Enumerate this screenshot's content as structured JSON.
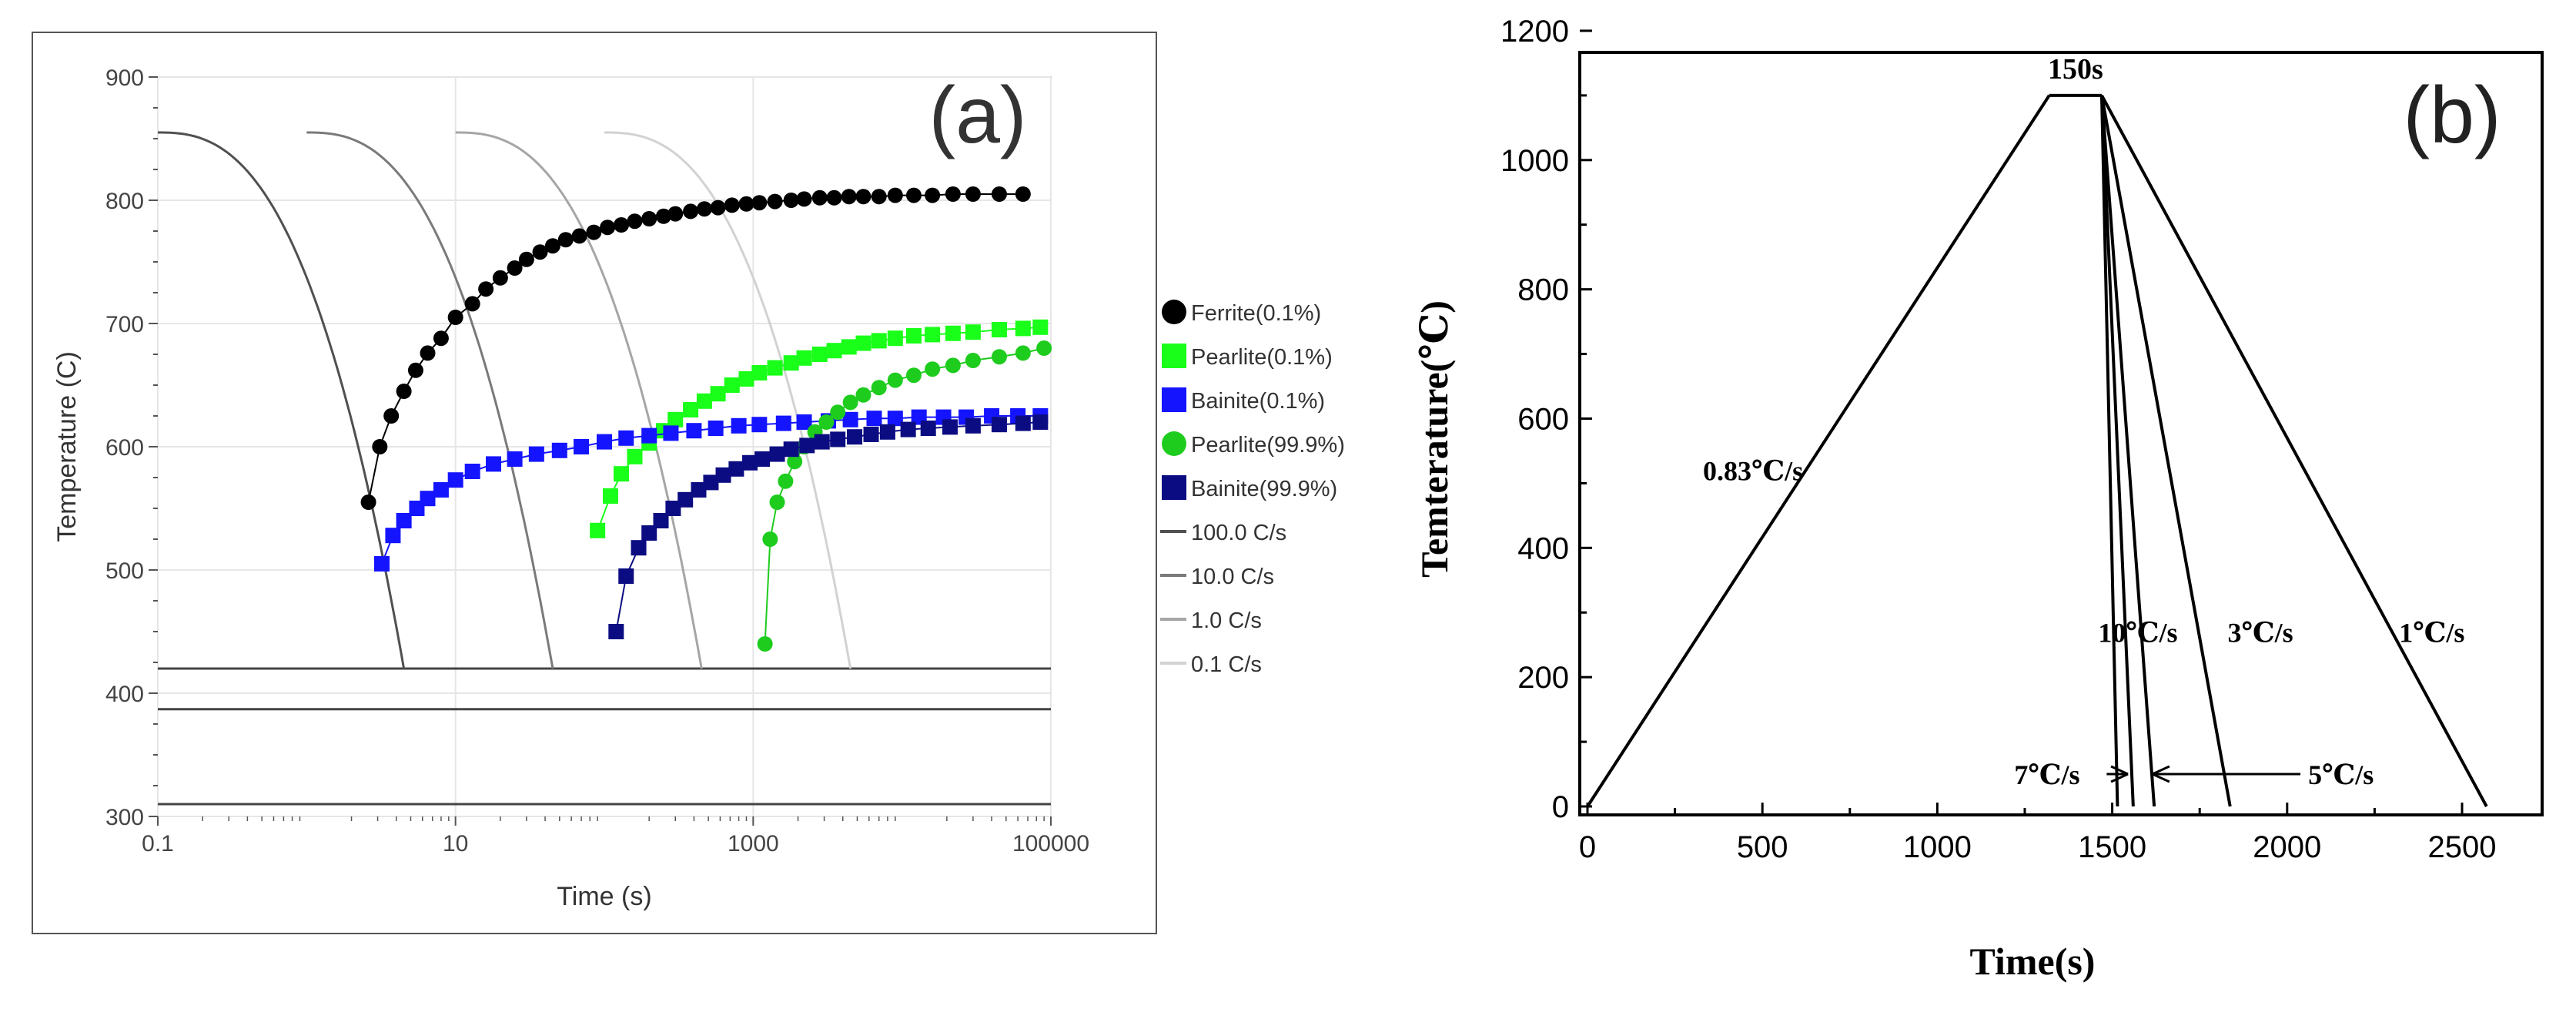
{
  "chart_data": [
    {
      "panel_label": "(a)",
      "type": "scatter",
      "xscale": "log",
      "xlim": [
        0.1,
        100000
      ],
      "ylim": [
        300,
        900
      ],
      "xlabel": "Time (s)",
      "ylabel": "Temperature (C)",
      "xticks": [
        0.1,
        10,
        1000,
        100000
      ],
      "xtick_labels": [
        "0.1",
        "10",
        "1000",
        "100000"
      ],
      "yticks": [
        300,
        400,
        500,
        600,
        700,
        800,
        900
      ],
      "ytick_labels": [
        "300",
        "400",
        "500",
        "600",
        "700",
        "800",
        "900"
      ],
      "grid": true,
      "legend_position": "right",
      "series": [
        {
          "name": "Ferrite(0.1%)",
          "color": "#000000",
          "marker": "circle",
          "x": [
            2.6,
            3.1,
            3.7,
            4.5,
            5.4,
            6.5,
            8,
            10,
            13,
            16,
            20,
            25,
            30,
            37,
            45,
            55,
            68,
            85,
            105,
            130,
            160,
            200,
            250,
            300,
            380,
            470,
            580,
            720,
            900,
            1100,
            1400,
            1800,
            2200,
            2800,
            3500,
            4400,
            5500,
            7000,
            9000,
            12000,
            16000,
            22000,
            30000,
            45000,
            65000
          ],
          "y": [
            555,
            600,
            625,
            645,
            662,
            676,
            688,
            705,
            716,
            728,
            737,
            745,
            752,
            758,
            763,
            768,
            771,
            774,
            778,
            780,
            783,
            785,
            787,
            789,
            791,
            793,
            794,
            796,
            797,
            798,
            799,
            800,
            801,
            802,
            802,
            803,
            803,
            803,
            804,
            804,
            804,
            805,
            805,
            805,
            805
          ]
        },
        {
          "name": "Pearlite(0.1%)",
          "color": "#19ff19",
          "marker": "square",
          "x": [
            90,
            110,
            130,
            160,
            200,
            250,
            300,
            380,
            470,
            580,
            720,
            900,
            1100,
            1400,
            1800,
            2200,
            2800,
            3500,
            4400,
            5500,
            7000,
            9000,
            12000,
            16000,
            22000,
            30000,
            45000,
            65000,
            85000
          ],
          "y": [
            532,
            560,
            578,
            592,
            603,
            613,
            622,
            630,
            637,
            643,
            650,
            655,
            660,
            664,
            668,
            672,
            675,
            678,
            681,
            684,
            686,
            688,
            690,
            691,
            692,
            693,
            695,
            696,
            697
          ]
        },
        {
          "name": "Bainite(0.1%)",
          "color": "#1414ff",
          "marker": "square",
          "x": [
            3.2,
            3.8,
            4.5,
            5.5,
            6.5,
            8,
            10,
            13,
            18,
            25,
            35,
            50,
            70,
            100,
            140,
            200,
            280,
            400,
            560,
            800,
            1100,
            1600,
            2200,
            3200,
            4500,
            6500,
            9000,
            13000,
            19000,
            27000,
            40000,
            60000,
            85000
          ],
          "y": [
            505,
            528,
            540,
            550,
            558,
            565,
            573,
            580,
            586,
            590,
            594,
            597,
            600,
            604,
            607,
            609,
            611,
            613,
            615,
            617,
            618,
            619,
            620,
            621,
            622,
            623,
            623,
            624,
            624,
            624,
            625,
            625,
            625
          ]
        },
        {
          "name": "Pearlite(99.9%)",
          "color": "#1ecc1e",
          "marker": "circle",
          "x": [
            1200,
            1300,
            1450,
            1650,
            1900,
            2200,
            2600,
            3100,
            3700,
            4500,
            5500,
            7000,
            9000,
            12000,
            16000,
            22000,
            30000,
            45000,
            65000,
            90000
          ],
          "y": [
            440,
            525,
            555,
            572,
            588,
            600,
            612,
            620,
            628,
            636,
            642,
            648,
            654,
            658,
            663,
            666,
            670,
            673,
            676,
            680
          ]
        },
        {
          "name": "Bainite(99.9%)",
          "color": "#0c0c82",
          "marker": "square",
          "x": [
            120,
            140,
            170,
            200,
            240,
            290,
            350,
            430,
            520,
            630,
            770,
            950,
            1150,
            1450,
            1800,
            2300,
            2900,
            3700,
            4800,
            6200,
            8000,
            11000,
            15000,
            21000,
            30000,
            45000,
            65000,
            85000
          ],
          "y": [
            450,
            495,
            518,
            530,
            540,
            550,
            557,
            565,
            571,
            577,
            582,
            587,
            590,
            594,
            598,
            601,
            604,
            606,
            608,
            610,
            612,
            614,
            615,
            616,
            617,
            618,
            619,
            620
          ]
        }
      ],
      "cooling_curves": [
        {
          "name": "100.0 C/s",
          "color": "#505050",
          "start_x": 0.1,
          "end_x": 4.5,
          "start_y": 855,
          "end_y": 420
        },
        {
          "name": "10.0 C/s",
          "color": "#7a7a7a",
          "start_x": 1,
          "end_x": 45,
          "start_y": 855,
          "end_y": 420
        },
        {
          "name": "1.0 C/s",
          "color": "#a6a6a6",
          "start_x": 10,
          "end_x": 450,
          "start_y": 855,
          "end_y": 420
        },
        {
          "name": "0.1 C/s",
          "color": "#d2d2d2",
          "start_x": 100,
          "end_x": 4500,
          "start_y": 855,
          "end_y": 420
        }
      ],
      "horizontal_lines": [
        420,
        387,
        310
      ]
    },
    {
      "panel_label": "(b)",
      "type": "line",
      "xlim": [
        0,
        2600
      ],
      "ylim": [
        0,
        1200
      ],
      "xlabel": "Time(s)",
      "ylabel": "Temterature(℃)",
      "xticks": [
        0,
        500,
        1000,
        1500,
        2000,
        2500
      ],
      "xtick_labels": [
        "0",
        "500",
        "1000",
        "1500",
        "2000",
        "2500"
      ],
      "yticks": [
        0,
        200,
        400,
        600,
        800,
        1000,
        1200
      ],
      "ytick_labels": [
        "0",
        "200",
        "400",
        "600",
        "800",
        "1000",
        "1200"
      ],
      "grid": false,
      "heating": {
        "rate_label": "0.83℃/s",
        "start": [
          0,
          0
        ],
        "end": [
          1320,
          1100
        ]
      },
      "hold": {
        "label": "150s",
        "start": [
          1320,
          1100
        ],
        "end": [
          1470,
          1100
        ]
      },
      "cooling": [
        {
          "rate_label": "10℃/s",
          "end_x": 1515
        },
        {
          "rate_label": "7℃/s",
          "end_x": 1560
        },
        {
          "rate_label": "5℃/s",
          "end_x": 1620
        },
        {
          "rate_label": "3℃/s",
          "end_x": 1837
        },
        {
          "rate_label": "1℃/s",
          "end_x": 2570
        }
      ],
      "annotations": [
        {
          "text": "0.83℃/s",
          "x": 330,
          "y": 520
        },
        {
          "text": "10℃/s",
          "x": 1460,
          "y": 270
        },
        {
          "text": "3℃/s",
          "x": 1830,
          "y": 270
        },
        {
          "text": "1℃/s",
          "x": 2320,
          "y": 270
        },
        {
          "text": "7℃/s",
          "x": 1220,
          "y": 50,
          "arrow_to_x": 1545
        },
        {
          "text": "5℃/s",
          "x": 2060,
          "y": 50,
          "arrow_to_x": 1615
        }
      ]
    }
  ]
}
